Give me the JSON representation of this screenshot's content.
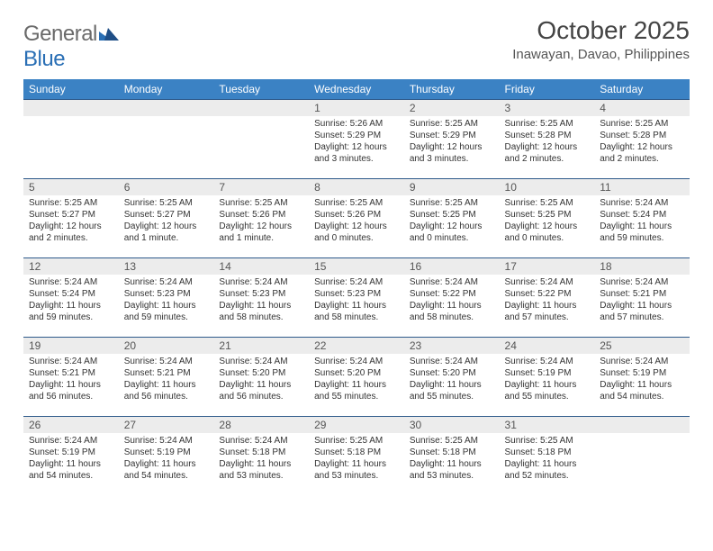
{
  "logo": {
    "general": "General",
    "blue": "Blue"
  },
  "title": "October 2025",
  "location": "Inawayan, Davao, Philippines",
  "colors": {
    "header_bg": "#3b82c4",
    "header_text": "#ffffff",
    "daynum_bg": "#ececec",
    "row_border": "#2e5a8a",
    "logo_gray": "#6a6a6a",
    "logo_blue": "#2a6fb5"
  },
  "weekdays": [
    "Sunday",
    "Monday",
    "Tuesday",
    "Wednesday",
    "Thursday",
    "Friday",
    "Saturday"
  ],
  "weeks": [
    [
      null,
      null,
      null,
      {
        "n": "1",
        "sr": "Sunrise: 5:26 AM",
        "ss": "Sunset: 5:29 PM",
        "dl": "Daylight: 12 hours and 3 minutes."
      },
      {
        "n": "2",
        "sr": "Sunrise: 5:25 AM",
        "ss": "Sunset: 5:29 PM",
        "dl": "Daylight: 12 hours and 3 minutes."
      },
      {
        "n": "3",
        "sr": "Sunrise: 5:25 AM",
        "ss": "Sunset: 5:28 PM",
        "dl": "Daylight: 12 hours and 2 minutes."
      },
      {
        "n": "4",
        "sr": "Sunrise: 5:25 AM",
        "ss": "Sunset: 5:28 PM",
        "dl": "Daylight: 12 hours and 2 minutes."
      }
    ],
    [
      {
        "n": "5",
        "sr": "Sunrise: 5:25 AM",
        "ss": "Sunset: 5:27 PM",
        "dl": "Daylight: 12 hours and 2 minutes."
      },
      {
        "n": "6",
        "sr": "Sunrise: 5:25 AM",
        "ss": "Sunset: 5:27 PM",
        "dl": "Daylight: 12 hours and 1 minute."
      },
      {
        "n": "7",
        "sr": "Sunrise: 5:25 AM",
        "ss": "Sunset: 5:26 PM",
        "dl": "Daylight: 12 hours and 1 minute."
      },
      {
        "n": "8",
        "sr": "Sunrise: 5:25 AM",
        "ss": "Sunset: 5:26 PM",
        "dl": "Daylight: 12 hours and 0 minutes."
      },
      {
        "n": "9",
        "sr": "Sunrise: 5:25 AM",
        "ss": "Sunset: 5:25 PM",
        "dl": "Daylight: 12 hours and 0 minutes."
      },
      {
        "n": "10",
        "sr": "Sunrise: 5:25 AM",
        "ss": "Sunset: 5:25 PM",
        "dl": "Daylight: 12 hours and 0 minutes."
      },
      {
        "n": "11",
        "sr": "Sunrise: 5:24 AM",
        "ss": "Sunset: 5:24 PM",
        "dl": "Daylight: 11 hours and 59 minutes."
      }
    ],
    [
      {
        "n": "12",
        "sr": "Sunrise: 5:24 AM",
        "ss": "Sunset: 5:24 PM",
        "dl": "Daylight: 11 hours and 59 minutes."
      },
      {
        "n": "13",
        "sr": "Sunrise: 5:24 AM",
        "ss": "Sunset: 5:23 PM",
        "dl": "Daylight: 11 hours and 59 minutes."
      },
      {
        "n": "14",
        "sr": "Sunrise: 5:24 AM",
        "ss": "Sunset: 5:23 PM",
        "dl": "Daylight: 11 hours and 58 minutes."
      },
      {
        "n": "15",
        "sr": "Sunrise: 5:24 AM",
        "ss": "Sunset: 5:23 PM",
        "dl": "Daylight: 11 hours and 58 minutes."
      },
      {
        "n": "16",
        "sr": "Sunrise: 5:24 AM",
        "ss": "Sunset: 5:22 PM",
        "dl": "Daylight: 11 hours and 58 minutes."
      },
      {
        "n": "17",
        "sr": "Sunrise: 5:24 AM",
        "ss": "Sunset: 5:22 PM",
        "dl": "Daylight: 11 hours and 57 minutes."
      },
      {
        "n": "18",
        "sr": "Sunrise: 5:24 AM",
        "ss": "Sunset: 5:21 PM",
        "dl": "Daylight: 11 hours and 57 minutes."
      }
    ],
    [
      {
        "n": "19",
        "sr": "Sunrise: 5:24 AM",
        "ss": "Sunset: 5:21 PM",
        "dl": "Daylight: 11 hours and 56 minutes."
      },
      {
        "n": "20",
        "sr": "Sunrise: 5:24 AM",
        "ss": "Sunset: 5:21 PM",
        "dl": "Daylight: 11 hours and 56 minutes."
      },
      {
        "n": "21",
        "sr": "Sunrise: 5:24 AM",
        "ss": "Sunset: 5:20 PM",
        "dl": "Daylight: 11 hours and 56 minutes."
      },
      {
        "n": "22",
        "sr": "Sunrise: 5:24 AM",
        "ss": "Sunset: 5:20 PM",
        "dl": "Daylight: 11 hours and 55 minutes."
      },
      {
        "n": "23",
        "sr": "Sunrise: 5:24 AM",
        "ss": "Sunset: 5:20 PM",
        "dl": "Daylight: 11 hours and 55 minutes."
      },
      {
        "n": "24",
        "sr": "Sunrise: 5:24 AM",
        "ss": "Sunset: 5:19 PM",
        "dl": "Daylight: 11 hours and 55 minutes."
      },
      {
        "n": "25",
        "sr": "Sunrise: 5:24 AM",
        "ss": "Sunset: 5:19 PM",
        "dl": "Daylight: 11 hours and 54 minutes."
      }
    ],
    [
      {
        "n": "26",
        "sr": "Sunrise: 5:24 AM",
        "ss": "Sunset: 5:19 PM",
        "dl": "Daylight: 11 hours and 54 minutes."
      },
      {
        "n": "27",
        "sr": "Sunrise: 5:24 AM",
        "ss": "Sunset: 5:19 PM",
        "dl": "Daylight: 11 hours and 54 minutes."
      },
      {
        "n": "28",
        "sr": "Sunrise: 5:24 AM",
        "ss": "Sunset: 5:18 PM",
        "dl": "Daylight: 11 hours and 53 minutes."
      },
      {
        "n": "29",
        "sr": "Sunrise: 5:25 AM",
        "ss": "Sunset: 5:18 PM",
        "dl": "Daylight: 11 hours and 53 minutes."
      },
      {
        "n": "30",
        "sr": "Sunrise: 5:25 AM",
        "ss": "Sunset: 5:18 PM",
        "dl": "Daylight: 11 hours and 53 minutes."
      },
      {
        "n": "31",
        "sr": "Sunrise: 5:25 AM",
        "ss": "Sunset: 5:18 PM",
        "dl": "Daylight: 11 hours and 52 minutes."
      },
      null
    ]
  ]
}
